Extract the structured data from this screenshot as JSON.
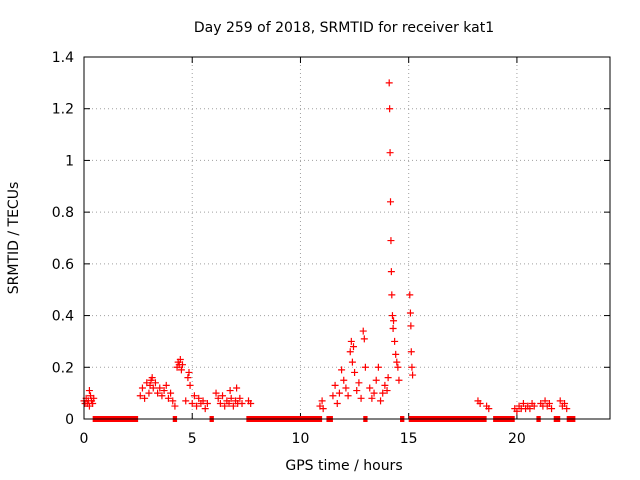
{
  "chart_data": {
    "type": "scatter",
    "title": "Day 259 of 2018, SRMTID for receiver kat1",
    "xlabel": "GPS time / hours",
    "ylabel": "SRMTID / TECUs",
    "xlim": [
      0,
      24.3
    ],
    "ylim": [
      0,
      1.4
    ],
    "grid": true,
    "marker": "+",
    "marker_color": "#ff0000",
    "x_ticks": [
      {
        "value": 0,
        "label": "0"
      },
      {
        "value": 5,
        "label": "5"
      },
      {
        "value": 10,
        "label": "10"
      },
      {
        "value": 15,
        "label": "15"
      },
      {
        "value": 20,
        "label": "20"
      }
    ],
    "y_ticks": [
      {
        "value": 0,
        "label": "0"
      },
      {
        "value": 0.2,
        "label": "0.2"
      },
      {
        "value": 0.4,
        "label": "0.4"
      },
      {
        "value": 0.6,
        "label": "0.6"
      },
      {
        "value": 0.8,
        "label": "0.8"
      },
      {
        "value": 1.0,
        "label": "1"
      },
      {
        "value": 1.2,
        "label": "1.2"
      },
      {
        "value": 1.4,
        "label": "1.4"
      }
    ],
    "zero_segments": [
      [
        0.4,
        2.5
      ],
      [
        4.1,
        4.3
      ],
      [
        5.8,
        6.0
      ],
      [
        7.5,
        11.0
      ],
      [
        11.2,
        11.5
      ],
      [
        12.9,
        13.1
      ],
      [
        14.6,
        14.8
      ],
      [
        15.0,
        18.6
      ],
      [
        18.9,
        19.9
      ],
      [
        20.9,
        21.1
      ],
      [
        21.7,
        22.0
      ],
      [
        22.3,
        22.7
      ]
    ],
    "series": [
      {
        "name": "SRMTID",
        "points": [
          [
            0.0,
            0.07
          ],
          [
            0.05,
            0.06
          ],
          [
            0.1,
            0.08
          ],
          [
            0.15,
            0.06
          ],
          [
            0.2,
            0.07
          ],
          [
            0.25,
            0.05
          ],
          [
            0.3,
            0.09
          ],
          [
            0.35,
            0.07
          ],
          [
            0.4,
            0.06
          ],
          [
            0.45,
            0.08
          ],
          [
            0.25,
            0.11
          ],
          [
            2.6,
            0.09
          ],
          [
            2.7,
            0.12
          ],
          [
            2.8,
            0.08
          ],
          [
            2.9,
            0.14
          ],
          [
            3.0,
            0.1
          ],
          [
            3.05,
            0.13
          ],
          [
            3.1,
            0.15
          ],
          [
            3.15,
            0.16
          ],
          [
            3.2,
            0.12
          ],
          [
            3.3,
            0.14
          ],
          [
            3.4,
            0.1
          ],
          [
            3.5,
            0.12
          ],
          [
            3.6,
            0.09
          ],
          [
            3.7,
            0.11
          ],
          [
            3.8,
            0.13
          ],
          [
            3.9,
            0.08
          ],
          [
            4.0,
            0.1
          ],
          [
            4.1,
            0.07
          ],
          [
            4.2,
            0.05
          ],
          [
            4.3,
            0.2
          ],
          [
            4.35,
            0.22
          ],
          [
            4.4,
            0.21
          ],
          [
            4.45,
            0.23
          ],
          [
            4.5,
            0.19
          ],
          [
            4.55,
            0.21
          ],
          [
            4.7,
            0.07
          ],
          [
            4.8,
            0.16
          ],
          [
            4.85,
            0.18
          ],
          [
            4.9,
            0.13
          ],
          [
            5.0,
            0.06
          ],
          [
            5.1,
            0.09
          ],
          [
            5.2,
            0.05
          ],
          [
            5.3,
            0.08
          ],
          [
            5.4,
            0.06
          ],
          [
            5.5,
            0.07
          ],
          [
            5.6,
            0.04
          ],
          [
            5.7,
            0.06
          ],
          [
            6.1,
            0.1
          ],
          [
            6.2,
            0.08
          ],
          [
            6.3,
            0.06
          ],
          [
            6.4,
            0.09
          ],
          [
            6.5,
            0.05
          ],
          [
            6.6,
            0.07
          ],
          [
            6.7,
            0.06
          ],
          [
            6.8,
            0.08
          ],
          [
            6.9,
            0.05
          ],
          [
            7.0,
            0.07
          ],
          [
            7.1,
            0.06
          ],
          [
            7.2,
            0.08
          ],
          [
            7.3,
            0.06
          ],
          [
            6.75,
            0.11
          ],
          [
            7.05,
            0.12
          ],
          [
            7.6,
            0.07
          ],
          [
            7.7,
            0.06
          ],
          [
            10.9,
            0.05
          ],
          [
            11.0,
            0.07
          ],
          [
            11.05,
            0.04
          ],
          [
            11.5,
            0.09
          ],
          [
            11.6,
            0.13
          ],
          [
            11.7,
            0.06
          ],
          [
            11.8,
            0.1
          ],
          [
            11.9,
            0.19
          ],
          [
            12.0,
            0.15
          ],
          [
            12.1,
            0.12
          ],
          [
            12.2,
            0.09
          ],
          [
            12.3,
            0.26
          ],
          [
            12.35,
            0.3
          ],
          [
            12.4,
            0.22
          ],
          [
            12.45,
            0.28
          ],
          [
            12.5,
            0.18
          ],
          [
            12.6,
            0.11
          ],
          [
            12.7,
            0.14
          ],
          [
            12.8,
            0.08
          ],
          [
            12.9,
            0.34
          ],
          [
            12.95,
            0.31
          ],
          [
            13.0,
            0.2
          ],
          [
            13.2,
            0.12
          ],
          [
            13.3,
            0.08
          ],
          [
            13.4,
            0.1
          ],
          [
            13.5,
            0.15
          ],
          [
            13.6,
            0.2
          ],
          [
            13.7,
            0.07
          ],
          [
            13.8,
            0.1
          ],
          [
            13.9,
            0.13
          ],
          [
            14.0,
            0.11
          ],
          [
            14.05,
            0.16
          ],
          [
            14.1,
            1.3
          ],
          [
            14.12,
            1.2
          ],
          [
            14.14,
            1.03
          ],
          [
            14.16,
            0.84
          ],
          [
            14.18,
            0.69
          ],
          [
            14.2,
            0.57
          ],
          [
            14.22,
            0.48
          ],
          [
            14.25,
            0.4
          ],
          [
            14.28,
            0.35
          ],
          [
            14.3,
            0.38
          ],
          [
            14.35,
            0.3
          ],
          [
            14.4,
            0.25
          ],
          [
            14.45,
            0.22
          ],
          [
            14.5,
            0.2
          ],
          [
            14.55,
            0.15
          ],
          [
            15.05,
            0.48
          ],
          [
            15.08,
            0.41
          ],
          [
            15.1,
            0.36
          ],
          [
            15.12,
            0.26
          ],
          [
            15.15,
            0.2
          ],
          [
            15.18,
            0.17
          ],
          [
            18.2,
            0.07
          ],
          [
            18.3,
            0.06
          ],
          [
            18.6,
            0.05
          ],
          [
            18.7,
            0.04
          ],
          [
            19.9,
            0.04
          ],
          [
            20.0,
            0.03
          ],
          [
            20.1,
            0.05
          ],
          [
            20.2,
            0.04
          ],
          [
            20.3,
            0.06
          ],
          [
            20.4,
            0.04
          ],
          [
            20.5,
            0.05
          ],
          [
            20.6,
            0.04
          ],
          [
            20.7,
            0.06
          ],
          [
            20.8,
            0.05
          ],
          [
            21.1,
            0.06
          ],
          [
            21.2,
            0.05
          ],
          [
            21.3,
            0.07
          ],
          [
            21.4,
            0.05
          ],
          [
            21.5,
            0.06
          ],
          [
            21.6,
            0.04
          ],
          [
            22.0,
            0.07
          ],
          [
            22.1,
            0.05
          ],
          [
            22.2,
            0.06
          ],
          [
            22.3,
            0.04
          ]
        ]
      }
    ]
  }
}
